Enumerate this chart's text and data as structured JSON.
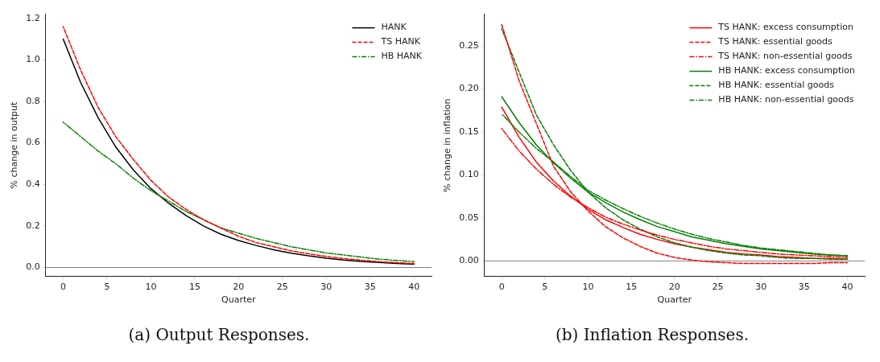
{
  "chart_data": [
    {
      "type": "line",
      "title": "(a) Output Responses.",
      "xlabel": "Quarter",
      "ylabel": "% change in output",
      "x": [
        0,
        2,
        4,
        6,
        8,
        10,
        12,
        14,
        16,
        18,
        20,
        22,
        24,
        26,
        28,
        30,
        32,
        34,
        36,
        38,
        40
      ],
      "xlim": [
        -2,
        42
      ],
      "xticks": [
        0,
        5,
        10,
        15,
        20,
        25,
        30,
        35,
        40
      ],
      "ylim": [
        -0.043,
        1.22
      ],
      "yticks": [
        {
          "value": 0,
          "label": "0.0"
        },
        0.2,
        0.4,
        0.6,
        0.8,
        {
          "value": 1,
          "label": "1.0"
        },
        1.2
      ],
      "grid": false,
      "legend": "top right",
      "marker": "none",
      "ref_lines": [
        {
          "axis": "y",
          "value": 0,
          "color": "#808080"
        }
      ],
      "series": [
        {
          "name": "HANK",
          "color": "#000000",
          "line_style": "solid",
          "values": [
            1.1,
            0.89,
            0.72,
            0.58,
            0.47,
            0.38,
            0.31,
            0.25,
            0.2,
            0.16,
            0.13,
            0.106,
            0.085,
            0.069,
            0.056,
            0.045,
            0.036,
            0.029,
            0.024,
            0.019,
            0.016
          ]
        },
        {
          "name": "TS HANK",
          "color": "#ff0000",
          "line_style": "dashed",
          "values": [
            1.16,
            0.95,
            0.77,
            0.63,
            0.52,
            0.42,
            0.34,
            0.28,
            0.23,
            0.19,
            0.15,
            0.12,
            0.1,
            0.08,
            0.066,
            0.053,
            0.043,
            0.035,
            0.028,
            0.023,
            0.019
          ]
        },
        {
          "name": "HB HANK",
          "color": "#008000",
          "line_style": "dashdot",
          "values": [
            0.7,
            0.63,
            0.56,
            0.5,
            0.43,
            0.37,
            0.32,
            0.27,
            0.23,
            0.19,
            0.165,
            0.14,
            0.12,
            0.1,
            0.085,
            0.07,
            0.06,
            0.05,
            0.04,
            0.034,
            0.028
          ]
        }
      ]
    },
    {
      "type": "line",
      "title": "(b) Inflation Responses.",
      "xlabel": "Quarter",
      "ylabel": "% change in inflation",
      "x": [
        0,
        2,
        4,
        6,
        8,
        10,
        12,
        14,
        16,
        18,
        20,
        22,
        24,
        26,
        28,
        30,
        32,
        34,
        36,
        38,
        40
      ],
      "xlim": [
        -2,
        42
      ],
      "xticks": [
        0,
        5,
        10,
        15,
        20,
        25,
        30,
        35,
        40
      ],
      "ylim": [
        -0.018,
        0.287
      ],
      "yticks": [
        {
          "value": 0,
          "label": "0.00"
        },
        {
          "value": 0.05,
          "label": "0.05"
        },
        {
          "value": 0.1,
          "label": "0.10"
        },
        {
          "value": 0.15,
          "label": "0.15"
        },
        {
          "value": 0.2,
          "label": "0.20"
        },
        {
          "value": 0.25,
          "label": "0.25"
        }
      ],
      "grid": false,
      "legend": "top right",
      "marker": "none",
      "ref_lines": [
        {
          "axis": "y",
          "value": 0,
          "color": "#808080"
        }
      ],
      "series": [
        {
          "name": "TS HANK: excess consumption",
          "color": "#ff0000",
          "line_style": "solid",
          "values": [
            0.179,
            0.144,
            0.115,
            0.093,
            0.075,
            0.06,
            0.048,
            0.039,
            0.031,
            0.025,
            0.02,
            0.016,
            0.013,
            0.01,
            0.008,
            0.007,
            0.005,
            0.004,
            0.003,
            0.003,
            0.002
          ]
        },
        {
          "name": "TS HANK: essential goods",
          "color": "#ff0000",
          "line_style": "dashed",
          "values": [
            0.275,
            0.21,
            0.16,
            0.11,
            0.08,
            0.058,
            0.04,
            0.027,
            0.017,
            0.009,
            0.004,
            0.001,
            -0.001,
            -0.002,
            -0.003,
            -0.003,
            -0.003,
            -0.003,
            -0.003,
            -0.002,
            -0.002
          ]
        },
        {
          "name": "TS HANK: non-essential goods",
          "color": "#ff0000",
          "line_style": "dashdot",
          "values": [
            0.154,
            0.128,
            0.107,
            0.089,
            0.074,
            0.062,
            0.051,
            0.043,
            0.036,
            0.03,
            0.025,
            0.021,
            0.017,
            0.014,
            0.012,
            0.01,
            0.008,
            0.007,
            0.006,
            0.005,
            0.004
          ]
        },
        {
          "name": "HB HANK: excess consumption",
          "color": "#008000",
          "line_style": "solid",
          "values": [
            0.191,
            0.161,
            0.135,
            0.114,
            0.096,
            0.08,
            0.068,
            0.057,
            0.048,
            0.04,
            0.034,
            0.028,
            0.024,
            0.02,
            0.017,
            0.014,
            0.012,
            0.01,
            0.008,
            0.007,
            0.006
          ]
        },
        {
          "name": "HB HANK: essential goods",
          "color": "#008000",
          "line_style": "dashed",
          "values": [
            0.27,
            0.22,
            0.17,
            0.135,
            0.105,
            0.08,
            0.062,
            0.048,
            0.037,
            0.028,
            0.021,
            0.016,
            0.012,
            0.009,
            0.007,
            0.006,
            0.004,
            0.003,
            0.003,
            0.002,
            0.002
          ]
        },
        {
          "name": "HB HANK: non-essential goods",
          "color": "#008000",
          "line_style": "dashdot",
          "values": [
            0.171,
            0.15,
            0.131,
            0.115,
            0.098,
            0.082,
            0.071,
            0.061,
            0.052,
            0.044,
            0.037,
            0.031,
            0.026,
            0.022,
            0.018,
            0.015,
            0.013,
            0.011,
            0.009,
            0.007,
            0.006
          ]
        }
      ]
    }
  ]
}
